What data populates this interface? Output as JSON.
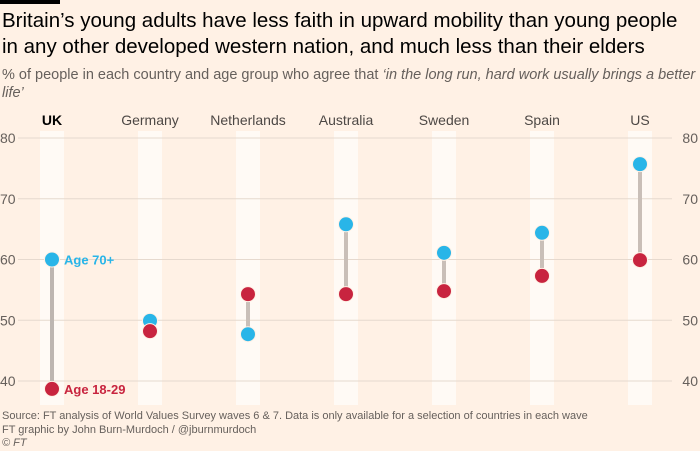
{
  "title": "Britain’s young adults have less faith in upward mobility than young people in any other developed western nation, and much less than their elders",
  "subtitle_prefix": "% of people in each country and age group who agree that ",
  "subtitle_quote": "‘in the long run, hard work usually brings a better life’",
  "footer": {
    "source": "Source: FT analysis of World Values Survey waves 6 & 7. Data is only available for a selection of countries in each wave",
    "credit": "FT graphic by John Burn-Murdoch / @jburnmurdoch",
    "copyright": "© FT"
  },
  "chart_data": {
    "type": "dumbbell",
    "categories": [
      "UK",
      "Germany",
      "Netherlands",
      "Australia",
      "Sweden",
      "Spain",
      "US"
    ],
    "highlighted_category": "UK",
    "series": [
      {
        "name": "Age 70+",
        "color": "#29b5e8",
        "values": [
          60,
          49.9,
          47.7,
          65.8,
          61.1,
          64.4,
          75.7
        ]
      },
      {
        "name": "Age 18-29",
        "color": "#c8243f",
        "values": [
          38.7,
          48.2,
          54.3,
          54.3,
          54.8,
          57.3,
          59.9
        ]
      }
    ],
    "ylim": [
      37,
      81
    ],
    "yticks": [
      40,
      50,
      60,
      70,
      80
    ],
    "grid": true,
    "connector_color": "#c9bfb8",
    "highlight_connector_color": "#bdb6b1"
  }
}
